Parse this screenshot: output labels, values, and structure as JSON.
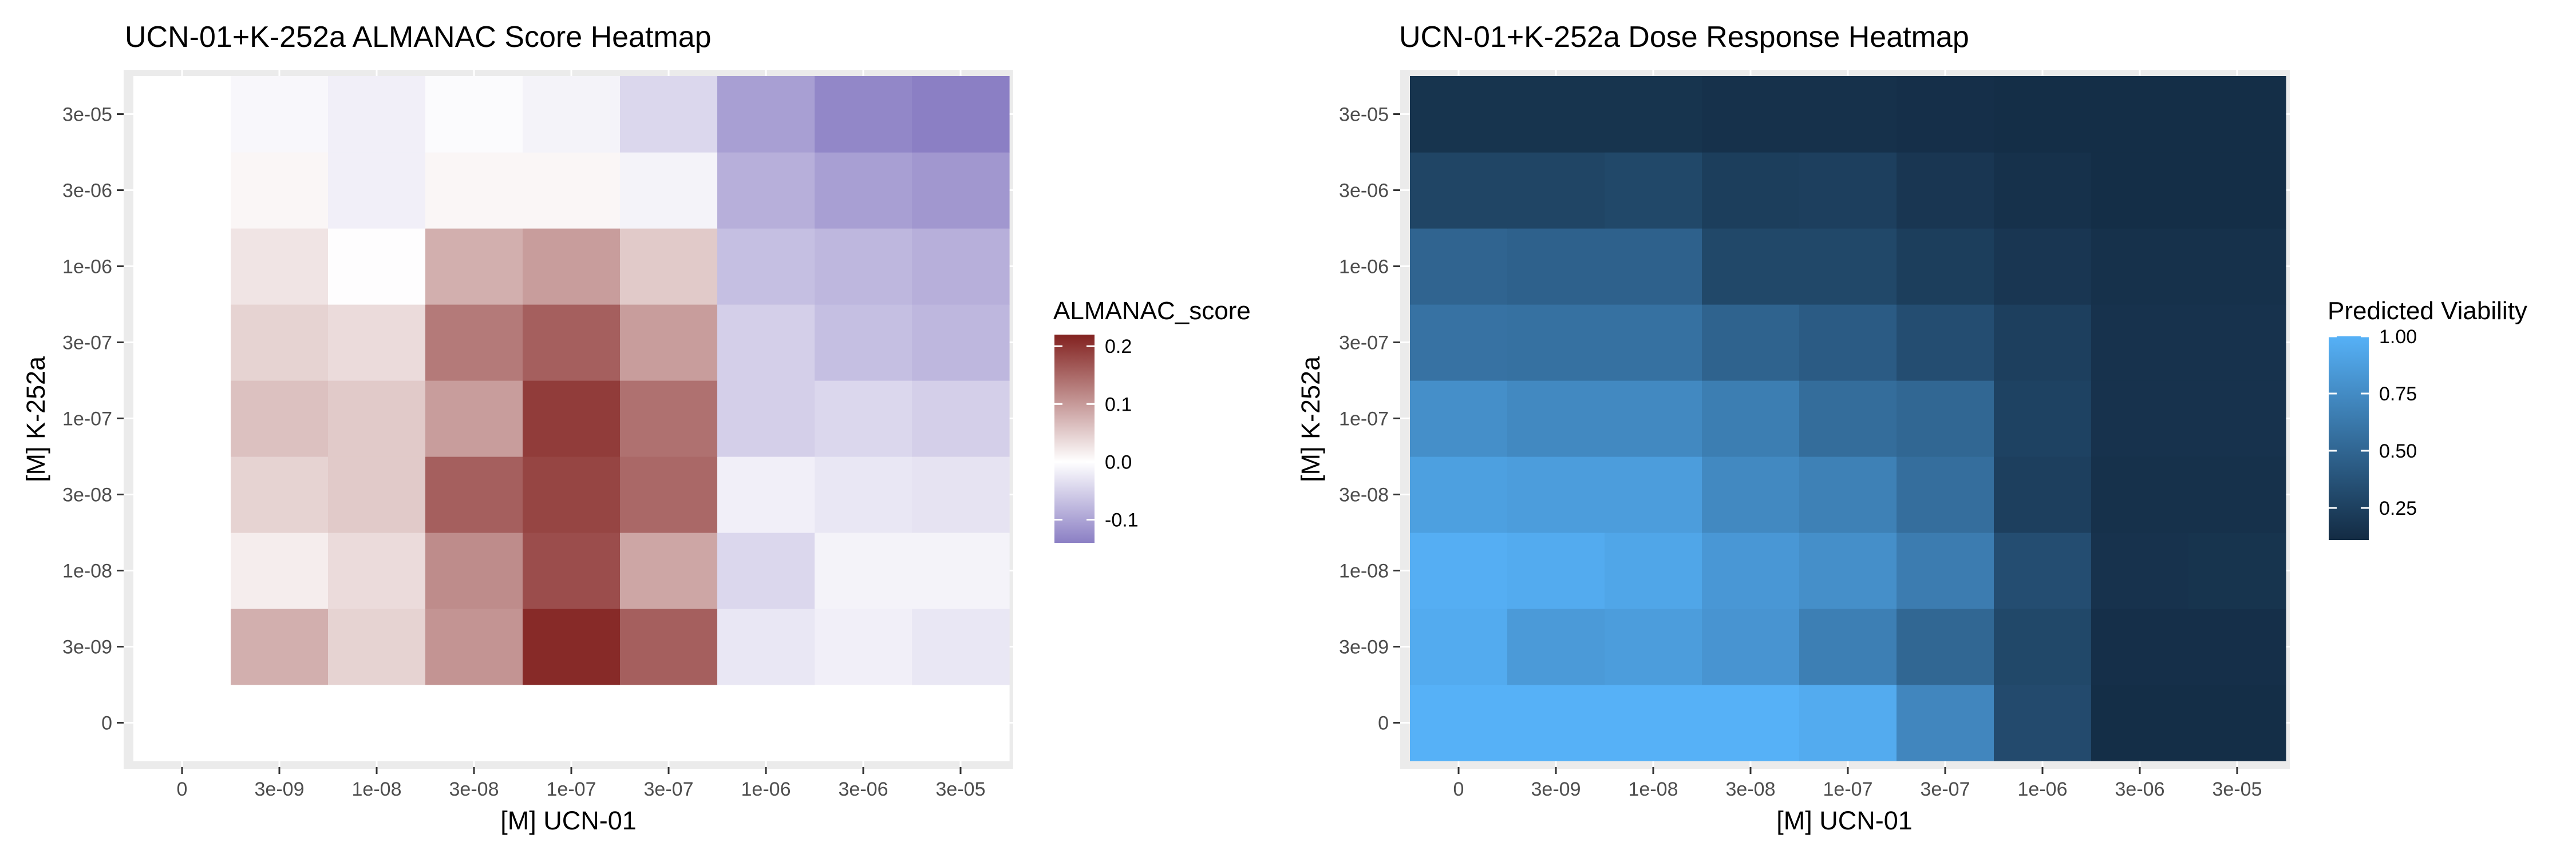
{
  "panels": [
    {
      "title": "UCN-01+K-252a ALMANAC Score Heatmap",
      "xlabel": "[M] UCN-01",
      "ylabel": "[M] K-252a",
      "legend": {
        "title": "ALMANAC_score",
        "ticks": [
          "0.2",
          "0.1",
          "0.0",
          "-0.1"
        ]
      }
    },
    {
      "title": "UCN-01+K-252a Dose Response Heatmap",
      "xlabel": "[M] UCN-01",
      "ylabel": "[M] K-252a",
      "legend": {
        "title": "Predicted Viability",
        "ticks": [
          "1.00",
          "0.75",
          "0.50",
          "0.25"
        ]
      }
    }
  ],
  "chart_data": [
    {
      "type": "heatmap",
      "title": "UCN-01+K-252a ALMANAC Score Heatmap",
      "xlabel": "[M] UCN-01",
      "ylabel": "[M] K-252a",
      "x_categories": [
        "0",
        "3e-09",
        "1e-08",
        "3e-08",
        "1e-07",
        "3e-07",
        "1e-06",
        "3e-06",
        "3e-05"
      ],
      "y_categories": [
        "0",
        "3e-09",
        "1e-08",
        "3e-08",
        "1e-07",
        "3e-07",
        "1e-06",
        "3e-06",
        "3e-05"
      ],
      "values": [
        [
          null,
          null,
          null,
          null,
          null,
          null,
          null,
          null,
          null
        ],
        [
          null,
          0.09,
          0.05,
          0.12,
          0.24,
          0.18,
          -0.03,
          -0.02,
          -0.03
        ],
        [
          null,
          0.02,
          0.04,
          0.13,
          0.2,
          0.1,
          -0.05,
          -0.015,
          -0.015
        ],
        [
          null,
          0.05,
          0.06,
          0.18,
          0.21,
          0.17,
          -0.02,
          -0.03,
          -0.035
        ],
        [
          null,
          0.07,
          0.06,
          0.11,
          0.22,
          0.16,
          -0.06,
          -0.05,
          -0.06
        ],
        [
          null,
          0.05,
          0.04,
          0.15,
          0.18,
          0.11,
          -0.06,
          -0.08,
          -0.09
        ],
        [
          null,
          0.03,
          -0.002,
          0.09,
          0.11,
          0.06,
          -0.08,
          -0.09,
          -0.1
        ],
        [
          null,
          0.01,
          -0.02,
          0.01,
          0.01,
          -0.015,
          -0.1,
          -0.12,
          -0.13
        ],
        [
          null,
          -0.01,
          -0.02,
          -0.005,
          -0.015,
          -0.05,
          -0.12,
          -0.15,
          -0.16
        ]
      ],
      "color_scale": {
        "low": "#8B7FC4",
        "mid": "#FFFFFF",
        "high": "#82211F",
        "domain": [
          -0.16,
          0.25
        ]
      },
      "legend": {
        "title": "ALMANAC_score",
        "ticks": [
          0.2,
          0.1,
          0.0,
          -0.1
        ],
        "range": [
          -0.14,
          0.22
        ]
      },
      "grid": true,
      "legend_position": "right"
    },
    {
      "type": "heatmap",
      "title": "UCN-01+K-252a Dose Response Heatmap",
      "xlabel": "[M] UCN-01",
      "ylabel": "[M] K-252a",
      "x_categories": [
        "0",
        "3e-09",
        "1e-08",
        "3e-08",
        "1e-07",
        "3e-07",
        "1e-06",
        "3e-06",
        "3e-05"
      ],
      "y_categories": [
        "0",
        "3e-09",
        "1e-08",
        "3e-08",
        "1e-07",
        "3e-07",
        "1e-06",
        "3e-06",
        "3e-05"
      ],
      "values": [
        [
          1.0,
          1.0,
          1.0,
          1.0,
          0.96,
          0.7,
          0.28,
          0.08,
          0.08
        ],
        [
          0.96,
          0.84,
          0.86,
          0.8,
          0.65,
          0.48,
          0.26,
          0.09,
          0.09
        ],
        [
          0.98,
          0.96,
          0.92,
          0.82,
          0.76,
          0.63,
          0.3,
          0.11,
          0.12
        ],
        [
          0.88,
          0.86,
          0.86,
          0.72,
          0.66,
          0.53,
          0.2,
          0.1,
          0.1
        ],
        [
          0.76,
          0.72,
          0.72,
          0.64,
          0.52,
          0.48,
          0.22,
          0.11,
          0.11
        ],
        [
          0.56,
          0.55,
          0.55,
          0.45,
          0.4,
          0.3,
          0.2,
          0.11,
          0.11
        ],
        [
          0.46,
          0.44,
          0.44,
          0.26,
          0.26,
          0.19,
          0.14,
          0.1,
          0.1
        ],
        [
          0.24,
          0.24,
          0.26,
          0.19,
          0.2,
          0.14,
          0.1,
          0.08,
          0.08
        ],
        [
          0.12,
          0.12,
          0.12,
          0.1,
          0.1,
          0.09,
          0.08,
          0.08,
          0.08
        ]
      ],
      "color_scale": {
        "low": "#132B43",
        "high": "#56B1F7",
        "domain": [
          0.06,
          1.0
        ]
      },
      "legend": {
        "title": "Predicted Viability",
        "ticks": [
          1.0,
          0.75,
          0.5,
          0.25
        ],
        "range": [
          0.11,
          1.0
        ]
      },
      "grid": true,
      "legend_position": "right"
    }
  ]
}
